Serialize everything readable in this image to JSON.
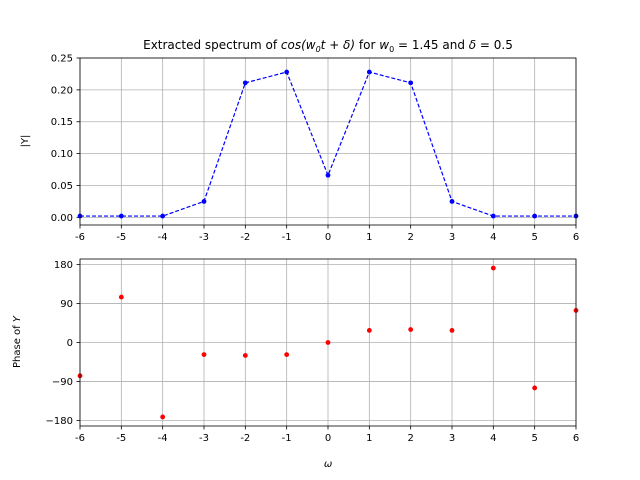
{
  "chart_data": [
    {
      "type": "line",
      "title_parts": [
        "Extracted spectrum of ",
        "cos(w",
        "0",
        "t + δ)",
        " for ",
        "w",
        "0",
        " = 1.45 and ",
        "δ",
        " = 0.5"
      ],
      "xlabel": "",
      "ylabel": "|Y|",
      "x": [
        -6,
        -5,
        -4,
        -3,
        -2,
        -1,
        0,
        1,
        2,
        3,
        4,
        5,
        6
      ],
      "series": [
        {
          "values": [
            0.002,
            0.002,
            0.002,
            0.025,
            0.211,
            0.228,
            0.066,
            0.228,
            0.211,
            0.025,
            0.002,
            0.002,
            0.002
          ],
          "color": "#0000ff",
          "style": "dashed-with-dots"
        }
      ],
      "xlim": [
        -6,
        6
      ],
      "ylim": [
        -0.012,
        0.25
      ],
      "xticks": [
        "-6",
        "-5",
        "-4",
        "-3",
        "-2",
        "-1",
        "0",
        "1",
        "2",
        "3",
        "4",
        "5",
        "6"
      ],
      "yticks": [
        "0.00",
        "0.05",
        "0.10",
        "0.15",
        "0.20",
        "0.25"
      ],
      "grid": true
    },
    {
      "type": "scatter",
      "xlabel": "ω",
      "ylabel_parts": [
        "Phase of ",
        "Y"
      ],
      "x": [
        -6,
        -5,
        -4,
        -3,
        -2,
        -1,
        0,
        1,
        2,
        3,
        4,
        5,
        6
      ],
      "series": [
        {
          "values": [
            -77,
            105,
            -172,
            -28,
            -30,
            -28,
            0,
            28,
            30,
            28,
            172,
            -105,
            74
          ],
          "color": "#ff0000"
        }
      ],
      "xlim": [
        -6,
        6
      ],
      "ylim": [
        -193,
        193
      ],
      "xticks": [
        "-6",
        "-5",
        "-4",
        "-3",
        "-2",
        "-1",
        "0",
        "1",
        "2",
        "3",
        "4",
        "5",
        "6"
      ],
      "yticks": [
        "−180",
        "−90",
        "0",
        "90",
        "180"
      ],
      "grid": true
    }
  ]
}
